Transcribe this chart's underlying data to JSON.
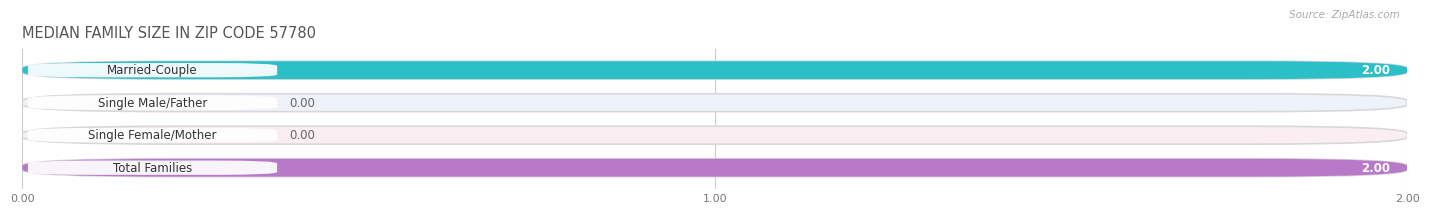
{
  "title": "MEDIAN FAMILY SIZE IN ZIP CODE 57780",
  "source": "Source: ZipAtlas.com",
  "categories": [
    "Married-Couple",
    "Single Male/Father",
    "Single Female/Mother",
    "Total Families"
  ],
  "values": [
    2.0,
    0.0,
    0.0,
    2.0
  ],
  "bar_colors": [
    "#2bbfc8",
    "#a0b8e8",
    "#f0a0b8",
    "#b87ac8"
  ],
  "bar_bg_colors": [
    "#e8f4f5",
    "#eef2fa",
    "#faeef2",
    "#f0eaf5"
  ],
  "xlim": [
    0,
    2.0
  ],
  "xticks": [
    0.0,
    1.0,
    2.0
  ],
  "xticklabels": [
    "0.00",
    "1.00",
    "2.00"
  ],
  "background_color": "#ffffff",
  "label_fontsize": 8.5,
  "title_fontsize": 10.5,
  "value_fontsize": 8.5
}
